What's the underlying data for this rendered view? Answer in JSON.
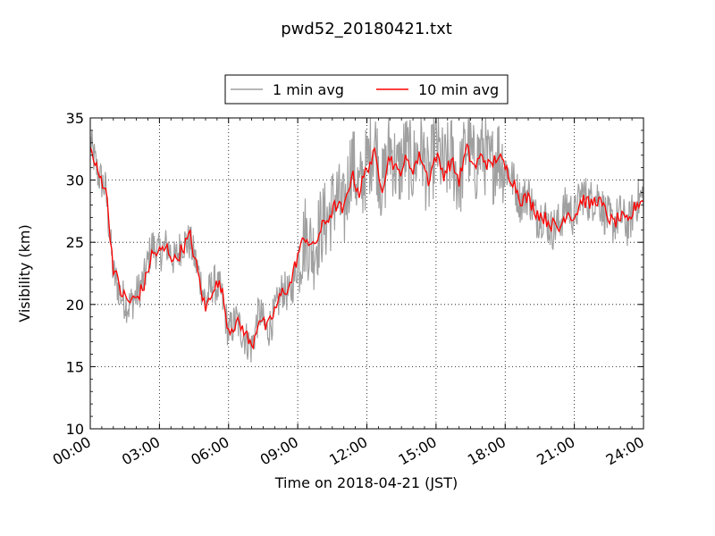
{
  "chart_data": {
    "type": "line",
    "title": "pwd52_20180421.txt",
    "xlabel": "Time on 2018-04-21 (JST)",
    "ylabel": "Visibility (km)",
    "xlim": [
      "00:00",
      "24:00"
    ],
    "ylim": [
      10,
      35
    ],
    "grid": true,
    "legend_position": "top-center",
    "x_tick_labels": [
      "00:00",
      "03:00",
      "06:00",
      "09:00",
      "12:00",
      "15:00",
      "18:00",
      "21:00",
      "24:00"
    ],
    "y_tick_labels": [
      "10",
      "15",
      "20",
      "25",
      "30",
      "35"
    ],
    "series": [
      {
        "name": "1 min avg",
        "color": "#a0a0a0",
        "style": "noisy gray line, dense one-minute samples fluctuating around the 10 min average",
        "x": [
          "00:00",
          "00:20",
          "00:40",
          "01:00",
          "01:20",
          "01:40",
          "02:00",
          "02:20",
          "02:40",
          "03:00",
          "03:20",
          "03:40",
          "04:00",
          "04:20",
          "04:40",
          "05:00",
          "05:20",
          "05:40",
          "06:00",
          "06:20",
          "06:40",
          "07:00",
          "07:20",
          "07:40",
          "08:00",
          "08:20",
          "08:40",
          "09:00",
          "09:20",
          "09:40",
          "10:00",
          "10:20",
          "10:40",
          "11:00",
          "11:20",
          "11:40",
          "12:00",
          "12:20",
          "12:40",
          "13:00",
          "13:20",
          "13:40",
          "14:00",
          "14:20",
          "14:40",
          "15:00",
          "15:20",
          "15:40",
          "16:00",
          "16:20",
          "16:40",
          "17:00",
          "17:20",
          "17:40",
          "18:00",
          "18:20",
          "18:40",
          "19:00",
          "19:20",
          "19:40",
          "20:00",
          "20:20",
          "20:40",
          "21:00",
          "21:20",
          "21:40",
          "22:00",
          "22:20",
          "22:40",
          "23:00",
          "23:20",
          "23:40",
          "24:00"
        ],
        "values": [
          33.5,
          30.5,
          29.0,
          22.0,
          20.5,
          19.5,
          21.0,
          22.5,
          25.5,
          24.0,
          25.0,
          23.5,
          25.5,
          24.5,
          23.0,
          21.0,
          22.0,
          20.5,
          17.5,
          19.0,
          17.0,
          16.5,
          20.0,
          17.5,
          19.0,
          21.5,
          20.0,
          22.5,
          26.0,
          24.0,
          26.5,
          27.0,
          29.5,
          27.0,
          33.0,
          29.0,
          31.5,
          34.5,
          29.0,
          33.5,
          30.5,
          33.0,
          31.0,
          34.0,
          29.5,
          34.0,
          31.0,
          32.5,
          29.5,
          33.5,
          31.0,
          33.5,
          30.5,
          32.5,
          31.0,
          30.0,
          28.0,
          29.5,
          26.5,
          27.5,
          25.5,
          27.0,
          28.5,
          27.0,
          29.5,
          28.5,
          29.0,
          27.0,
          26.5,
          27.5,
          26.0,
          28.5,
          29.0
        ]
      },
      {
        "name": "10 min avg",
        "color": "#ff0000",
        "style": "red line",
        "x": [
          "00:00",
          "00:20",
          "00:40",
          "01:00",
          "01:20",
          "01:40",
          "02:00",
          "02:20",
          "02:40",
          "03:00",
          "03:20",
          "03:40",
          "04:00",
          "04:20",
          "04:40",
          "05:00",
          "05:20",
          "05:40",
          "06:00",
          "06:20",
          "06:40",
          "07:00",
          "07:20",
          "07:40",
          "08:00",
          "08:20",
          "08:40",
          "09:00",
          "09:20",
          "09:40",
          "10:00",
          "10:20",
          "10:40",
          "11:00",
          "11:20",
          "11:40",
          "12:00",
          "12:20",
          "12:40",
          "13:00",
          "13:20",
          "13:40",
          "14:00",
          "14:20",
          "14:40",
          "15:00",
          "15:20",
          "15:40",
          "16:00",
          "16:20",
          "16:40",
          "17:00",
          "17:20",
          "17:40",
          "18:00",
          "18:20",
          "18:40",
          "19:00",
          "19:20",
          "19:40",
          "20:00",
          "20:20",
          "20:40",
          "21:00",
          "21:20",
          "21:40",
          "22:00",
          "22:20",
          "22:40",
          "23:00",
          "23:20",
          "23:40",
          "24:00"
        ],
        "values": [
          32.5,
          30.5,
          29.5,
          23.0,
          21.0,
          20.2,
          20.5,
          21.5,
          24.0,
          24.2,
          24.5,
          23.5,
          24.5,
          25.5,
          22.5,
          19.5,
          21.5,
          21.5,
          18.0,
          18.5,
          18.0,
          16.5,
          19.0,
          18.0,
          19.5,
          21.0,
          21.5,
          24.0,
          25.5,
          24.5,
          26.0,
          27.0,
          28.0,
          27.5,
          30.5,
          29.0,
          31.0,
          32.0,
          29.5,
          32.0,
          30.5,
          31.5,
          31.0,
          32.0,
          30.0,
          32.0,
          30.5,
          31.5,
          30.0,
          32.5,
          31.0,
          32.0,
          31.0,
          32.0,
          31.0,
          30.0,
          28.5,
          28.5,
          27.5,
          27.0,
          26.5,
          26.0,
          27.5,
          27.0,
          28.5,
          28.0,
          28.5,
          27.5,
          26.5,
          27.0,
          26.5,
          28.0,
          28.5
        ]
      }
    ]
  }
}
